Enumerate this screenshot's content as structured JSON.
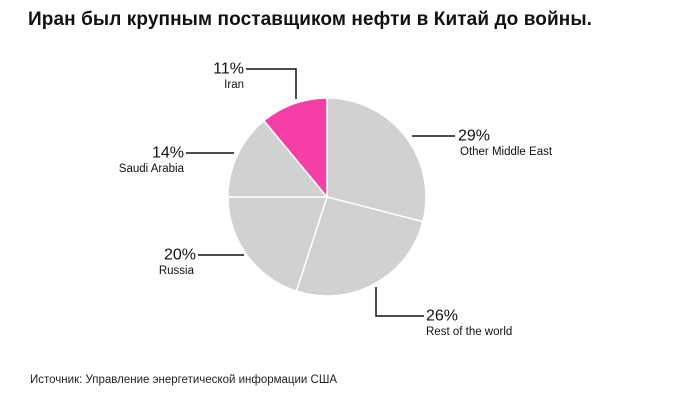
{
  "title": "Иран был крупным поставщиком нефти в Китай до войны.",
  "source": "Источник: Управление энергетической информации США",
  "colors": {
    "highlight": "#f53ea6",
    "other": "#d1d1d1",
    "leader": "#111111"
  },
  "chart_data": {
    "type": "pie",
    "title": "Иран был крупным поставщиком нефти в Китай до войны.",
    "unit": "%",
    "slices": [
      {
        "label": "Other Middle East",
        "value": 29,
        "display": "29%",
        "highlight": false
      },
      {
        "label": "Rest of the world",
        "value": 26,
        "display": "26%",
        "highlight": false
      },
      {
        "label": "Russia",
        "value": 20,
        "display": "20%",
        "highlight": false
      },
      {
        "label": "Saudi Arabia",
        "value": 14,
        "display": "14%",
        "highlight": false
      },
      {
        "label": "Iran",
        "value": 11,
        "display": "11%",
        "highlight": true
      }
    ]
  }
}
